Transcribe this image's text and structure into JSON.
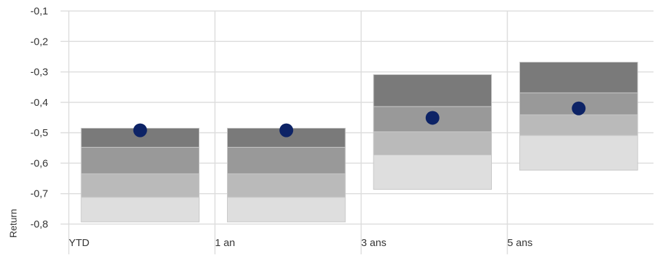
{
  "chart_data": {
    "type": "bar",
    "ylabel": "Return",
    "ylim": [
      -0.8,
      -0.1
    ],
    "y_ticks": [
      "-0,1",
      "-0,2",
      "-0,3",
      "-0,4",
      "-0,5",
      "-0,6",
      "-0,7",
      "-0,8"
    ],
    "y_tick_values": [
      -0.1,
      -0.2,
      -0.3,
      -0.4,
      -0.5,
      -0.6,
      -0.7,
      -0.8
    ],
    "categories": [
      "YTD",
      "1 an",
      "3 ans",
      "5 ans"
    ],
    "quartile_bands": [
      {
        "category": "YTD",
        "bounds": [
          -0.485,
          -0.548,
          -0.635,
          -0.712,
          -0.793
        ]
      },
      {
        "category": "1 an",
        "bounds": [
          -0.485,
          -0.548,
          -0.635,
          -0.712,
          -0.793
        ]
      },
      {
        "category": "3 ans",
        "bounds": [
          -0.309,
          -0.414,
          -0.497,
          -0.573,
          -0.686
        ]
      },
      {
        "category": "5 ans",
        "bounds": [
          -0.268,
          -0.369,
          -0.441,
          -0.509,
          -0.623
        ]
      }
    ],
    "points": [
      -0.492,
      -0.492,
      -0.451,
      -0.42
    ],
    "colors": {
      "band_1": "#7a7a7a",
      "band_2": "#999999",
      "band_3": "#bababa",
      "band_4": "#dedede",
      "point": "#0d2366",
      "grid": "#dddddd"
    },
    "grid": true
  }
}
